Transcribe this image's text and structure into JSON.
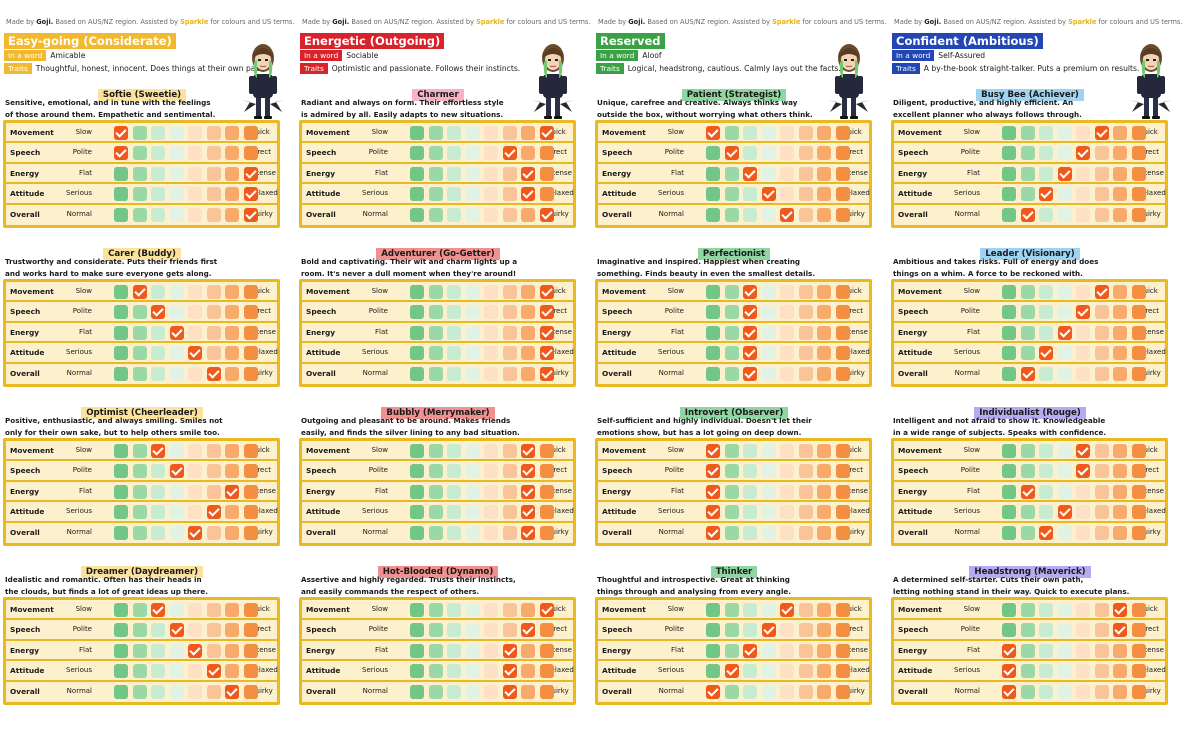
{
  "credit": {
    "made_by": "Made by",
    "author": "Goji.",
    "middle": "Based on AUS/NZ region. Assisted by",
    "assistant": "Sparkle",
    "end": "for colours and US terms."
  },
  "labels": {
    "in_a_word": "In a word",
    "traits": "Traits"
  },
  "meters": [
    {
      "name": "Movement",
      "low": "Slow",
      "high": "Quick"
    },
    {
      "name": "Speech",
      "low": "Polite",
      "high": "Direct"
    },
    {
      "name": "Energy",
      "low": "Flat",
      "high": "Intense"
    },
    {
      "name": "Attitude",
      "low": "Serious",
      "high": "Relaxed"
    },
    {
      "name": "Overall",
      "low": "Normal",
      "high": "Quirky"
    }
  ],
  "scale_colors": [
    "#72c688",
    "#9bd8a8",
    "#c7ecd2",
    "#e2f3e6",
    "#fde0c6",
    "#fac49a",
    "#f7aa6b",
    "#f48f41"
  ],
  "columns": [
    {
      "heading": "Easy-going (Considerate)",
      "heading_bg": "#f3b92e",
      "heading_fg": "#ffffff",
      "tag_bg": "#f3b92e",
      "word": "Amicable",
      "traits": "Thoughtful, honest, innocent. Does things at their own pace.",
      "personalities": [
        {
          "name": "Softie (Sweetie)",
          "name_bg": "#fbe39d",
          "desc": [
            "Sensitive, emotional, and in tune with the feelings",
            "of those around them. Empathetic and sentimental."
          ],
          "values": [
            1,
            1,
            8,
            8,
            8
          ]
        },
        {
          "name": "Carer (Buddy)",
          "name_bg": "#fbe39d",
          "desc": [
            "Trustworthy and considerate. Puts their friends first",
            "and works hard to make sure everyone gets along."
          ],
          "values": [
            2,
            3,
            4,
            5,
            6
          ]
        },
        {
          "name": "Optimist (Cheerleader)",
          "name_bg": "#fbe39d",
          "desc": [
            "Positive, enthusiastic, and always smiling. Smiles not",
            "only for their own sake, but to help others smile too."
          ],
          "values": [
            3,
            4,
            7,
            6,
            5
          ]
        },
        {
          "name": "Dreamer (Daydreamer)",
          "name_bg": "#fbe39d",
          "desc": [
            "Idealistic and romantic. Often has their heads in",
            "the clouds, but finds a lot of great ideas up there."
          ],
          "values": [
            3,
            4,
            5,
            6,
            7
          ]
        }
      ]
    },
    {
      "heading": "Energetic (Outgoing)",
      "heading_bg": "#d9222a",
      "heading_fg": "#ffffff",
      "tag_bg": "#d9222a",
      "word": "Sociable",
      "traits": "Optimistic and passionate. Follows their instincts.",
      "personalities": [
        {
          "name": "Charmer",
          "name_bg": "#f6b3c4",
          "desc": [
            "Radiant and always on form. Their effortless style",
            "is admired by all. Easily adapts to new situations."
          ],
          "values": [
            8,
            6,
            7,
            7,
            8
          ]
        },
        {
          "name": "Adventurer (Go-Getter)",
          "name_bg": "#f0908f",
          "desc": [
            "Bold and captivating. Their wit and charm lights up a",
            "room. It's never a dull moment when they're around!"
          ],
          "values": [
            8,
            8,
            8,
            8,
            8
          ]
        },
        {
          "name": "Bubbly (Merrymaker)",
          "name_bg": "#f0908f",
          "desc": [
            "Outgoing and pleasant to be around. Makes friends",
            "easily, and finds the silver lining to any bad situation."
          ],
          "values": [
            7,
            7,
            7,
            7,
            7
          ]
        },
        {
          "name": "Hot-Blooded (Dynamo)",
          "name_bg": "#f0908f",
          "desc": [
            "Assertive and highly regarded. Trusts their instincts,",
            "and easily commands the respect of others."
          ],
          "values": [
            8,
            7,
            6,
            6,
            6
          ]
        }
      ]
    },
    {
      "heading": "Reserved",
      "heading_bg": "#3aa146",
      "heading_fg": "#ffffff",
      "tag_bg": "#3aa146",
      "word": "Aloof",
      "traits": "Logical, headstrong, cautious. Calmly lays out the facts.",
      "personalities": [
        {
          "name": "Patient (Strategist)",
          "name_bg": "#8fd6a0",
          "desc": [
            "Unique, carefree and creative. Always thinks way",
            "outside the box, without worrying what others think."
          ],
          "values": [
            1,
            2,
            3,
            4,
            5
          ]
        },
        {
          "name": "Perfectionist",
          "name_bg": "#8fd6a0",
          "desc": [
            "Imaginative and inspired. Happiest when creating",
            "something. Finds beauty in even the smallest details."
          ],
          "values": [
            3,
            3,
            3,
            3,
            3
          ]
        },
        {
          "name": "Introvert (Observer)",
          "name_bg": "#8fd6a0",
          "desc": [
            "Self-sufficient and highly individual. Doesn't let their",
            "emotions show, but has a lot going on deep down."
          ],
          "values": [
            1,
            1,
            1,
            1,
            1
          ]
        },
        {
          "name": "Thinker",
          "name_bg": "#8fd6a0",
          "desc": [
            "Thoughtful and introspective. Great at thinking",
            "things through and analysing from every angle."
          ],
          "values": [
            5,
            4,
            3,
            2,
            1
          ]
        }
      ]
    },
    {
      "heading": "Confident (Ambitious)",
      "heading_bg": "#2346b5",
      "heading_fg": "#ffffff",
      "tag_bg": "#2346b5",
      "word": "Self-Assured",
      "traits": "A by-the-book straight-talker. Puts a premium on results.",
      "personalities": [
        {
          "name": "Busy Bee (Achiever)",
          "name_bg": "#9ed3f2",
          "desc": [
            "Diligent, productive, and highly efficient. An",
            "excellent planner who always follows through."
          ],
          "values": [
            6,
            5,
            4,
            3,
            2
          ]
        },
        {
          "name": "Leader (Visionary)",
          "name_bg": "#9ed3f2",
          "desc": [
            "Ambitious and takes risks. Full of energy and does",
            "things on a whim. A force to be reckoned with."
          ],
          "values": [
            6,
            5,
            4,
            3,
            2
          ]
        },
        {
          "name": "Individualist (Rouge)",
          "name_bg": "#b6aaf0",
          "desc": [
            "Intelligent and not afraid to show it. Knowledgeable",
            "in a wide range of subjects. Speaks with confidence."
          ],
          "values": [
            5,
            5,
            2,
            4,
            3
          ]
        },
        {
          "name": "Headstrong (Maverick)",
          "name_bg": "#b6aaf0",
          "desc": [
            "A determined self-starter. Cuts their own path,",
            "letting nothing stand in their way. Quick to execute plans."
          ],
          "values": [
            7,
            7,
            1,
            1,
            1
          ]
        }
      ]
    }
  ]
}
